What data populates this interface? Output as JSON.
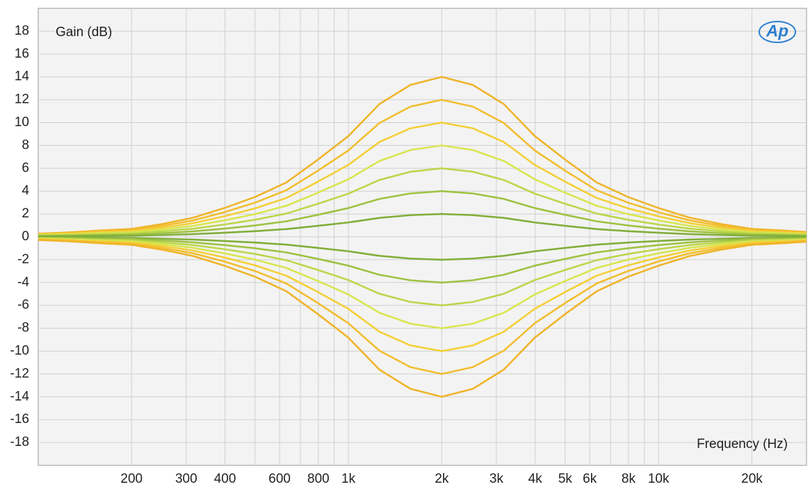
{
  "chart_data": {
    "type": "line",
    "logo": "Ap",
    "ylabel": "Gain (dB)",
    "xlabel": "Frequency (Hz)",
    "xscale": "log",
    "grid": true,
    "xlim": [
      100,
      30000
    ],
    "ylim": [
      -20,
      20
    ],
    "yticks": [
      -18,
      -16,
      -14,
      -12,
      -10,
      -8,
      -6,
      -4,
      -2,
      0,
      2,
      4,
      6,
      8,
      10,
      12,
      14,
      16,
      18
    ],
    "xticks": [
      200,
      300,
      400,
      600,
      800,
      {
        "value": 1000,
        "label": "1k"
      },
      {
        "value": 2000,
        "label": "2k"
      },
      {
        "value": 3000,
        "label": "3k"
      },
      {
        "value": 4000,
        "label": "4k"
      },
      {
        "value": 5000,
        "label": "5k"
      },
      {
        "value": 6000,
        "label": "6k"
      },
      {
        "value": 8000,
        "label": "8k"
      },
      {
        "value": 10000,
        "label": "10k"
      },
      {
        "value": 20000,
        "label": "20k"
      }
    ],
    "xminor": [
      500,
      700,
      900,
      7000,
      9000
    ],
    "x": [
      100,
      126,
      158,
      200,
      251,
      316,
      398,
      501,
      631,
      794,
      1000,
      1259,
      1585,
      2000,
      2520,
      3170,
      3990,
      5020,
      6320,
      7960,
      10000,
      12600,
      15900,
      20000,
      25200,
      30000
    ],
    "series": [
      {
        "color": "#efb42a",
        "values": [
          0.28,
          0.39,
          0.56,
          0.7,
          1.12,
          1.68,
          2.52,
          3.5,
          4.76,
          6.72,
          8.82,
          11.62,
          13.3,
          14,
          13.3,
          11.62,
          8.82,
          6.72,
          4.76,
          3.5,
          2.52,
          1.68,
          1.12,
          0.7,
          0.56,
          0.42
        ]
      },
      {
        "color": "#f2be30",
        "values": [
          0.24,
          0.34,
          0.48,
          0.6,
          0.96,
          1.44,
          2.16,
          3,
          4.08,
          5.76,
          7.56,
          9.96,
          11.4,
          12,
          11.4,
          9.96,
          7.56,
          5.76,
          4.08,
          3,
          2.16,
          1.44,
          0.96,
          0.6,
          0.48,
          0.36
        ]
      },
      {
        "color": "#f4cf36",
        "values": [
          0.2,
          0.28,
          0.4,
          0.5,
          0.8,
          1.2,
          1.8,
          2.5,
          3.4,
          4.8,
          6.3,
          8.3,
          9.5,
          10,
          9.5,
          8.3,
          6.3,
          4.8,
          3.4,
          2.5,
          1.8,
          1.2,
          0.8,
          0.5,
          0.4,
          0.3
        ]
      },
      {
        "color": "#d8e650",
        "values": [
          0.16,
          0.22,
          0.32,
          0.4,
          0.64,
          0.96,
          1.44,
          2,
          2.72,
          3.84,
          5.04,
          6.64,
          7.6,
          8,
          7.6,
          6.64,
          5.04,
          3.84,
          2.72,
          2,
          1.44,
          0.96,
          0.64,
          0.4,
          0.32,
          0.24
        ]
      },
      {
        "color": "#bcd64a",
        "values": [
          0.12,
          0.17,
          0.24,
          0.3,
          0.48,
          0.72,
          1.08,
          1.5,
          2.04,
          2.88,
          3.78,
          4.98,
          5.7,
          6,
          5.7,
          4.98,
          3.78,
          2.88,
          2.04,
          1.5,
          1.08,
          0.72,
          0.48,
          0.3,
          0.24,
          0.18
        ]
      },
      {
        "color": "#9fc242",
        "values": [
          0.08,
          0.11,
          0.16,
          0.2,
          0.32,
          0.48,
          0.72,
          1,
          1.36,
          1.92,
          2.52,
          3.32,
          3.8,
          4,
          3.8,
          3.32,
          2.52,
          1.92,
          1.36,
          1,
          0.72,
          0.48,
          0.32,
          0.2,
          0.16,
          0.12
        ]
      },
      {
        "color": "#82ae3a",
        "values": [
          0.04,
          0.06,
          0.08,
          0.1,
          0.16,
          0.24,
          0.36,
          0.5,
          0.68,
          0.96,
          1.26,
          1.66,
          1.9,
          2,
          1.9,
          1.66,
          1.26,
          0.96,
          0.68,
          0.5,
          0.36,
          0.24,
          0.16,
          0.1,
          0.08,
          0.06
        ]
      },
      {
        "color": "#82ae3a",
        "values": [
          -0.04,
          -0.06,
          -0.08,
          -0.1,
          -0.16,
          -0.24,
          -0.36,
          -0.5,
          -0.68,
          -0.96,
          -1.26,
          -1.66,
          -1.9,
          -2,
          -1.9,
          -1.66,
          -1.26,
          -0.96,
          -0.68,
          -0.5,
          -0.36,
          -0.24,
          -0.16,
          -0.1,
          -0.08,
          -0.06
        ]
      },
      {
        "color": "#9fc242",
        "values": [
          -0.08,
          -0.11,
          -0.16,
          -0.2,
          -0.32,
          -0.48,
          -0.72,
          -1,
          -1.36,
          -1.92,
          -2.52,
          -3.32,
          -3.8,
          -4,
          -3.8,
          -3.32,
          -2.52,
          -1.92,
          -1.36,
          -1,
          -0.72,
          -0.48,
          -0.32,
          -0.2,
          -0.16,
          -0.12
        ]
      },
      {
        "color": "#bcd64a",
        "values": [
          -0.12,
          -0.17,
          -0.24,
          -0.3,
          -0.48,
          -0.72,
          -1.08,
          -1.5,
          -2.04,
          -2.88,
          -3.78,
          -4.98,
          -5.7,
          -6,
          -5.7,
          -4.98,
          -3.78,
          -2.88,
          -2.04,
          -1.5,
          -1.08,
          -0.72,
          -0.48,
          -0.3,
          -0.24,
          -0.18
        ]
      },
      {
        "color": "#d8e650",
        "values": [
          -0.16,
          -0.22,
          -0.32,
          -0.4,
          -0.64,
          -0.96,
          -1.44,
          -2,
          -2.72,
          -3.84,
          -5.04,
          -6.64,
          -7.6,
          -8,
          -7.6,
          -6.64,
          -5.04,
          -3.84,
          -2.72,
          -2,
          -1.44,
          -0.96,
          -0.64,
          -0.4,
          -0.32,
          -0.24
        ]
      },
      {
        "color": "#f4cf36",
        "values": [
          -0.2,
          -0.28,
          -0.4,
          -0.5,
          -0.8,
          -1.2,
          -1.8,
          -2.5,
          -3.4,
          -4.8,
          -6.3,
          -8.3,
          -9.5,
          -10,
          -9.5,
          -8.3,
          -6.3,
          -4.8,
          -3.4,
          -2.5,
          -1.8,
          -1.2,
          -0.8,
          -0.5,
          -0.4,
          -0.3
        ]
      },
      {
        "color": "#f2be30",
        "values": [
          -0.24,
          -0.34,
          -0.48,
          -0.6,
          -0.96,
          -1.44,
          -2.16,
          -3,
          -4.08,
          -5.76,
          -7.56,
          -9.96,
          -11.4,
          -12,
          -11.4,
          -9.96,
          -7.56,
          -5.76,
          -4.08,
          -3,
          -2.16,
          -1.44,
          -0.96,
          -0.6,
          -0.48,
          -0.36
        ]
      },
      {
        "color": "#efb42a",
        "values": [
          -0.28,
          -0.39,
          -0.56,
          -0.7,
          -1.12,
          -1.68,
          -2.52,
          -3.5,
          -4.76,
          -6.72,
          -8.82,
          -11.62,
          -13.3,
          -14,
          -13.3,
          -11.62,
          -8.82,
          -6.72,
          -4.76,
          -3.5,
          -2.52,
          -1.68,
          -1.12,
          -0.7,
          -0.56,
          -0.42
        ]
      }
    ]
  }
}
